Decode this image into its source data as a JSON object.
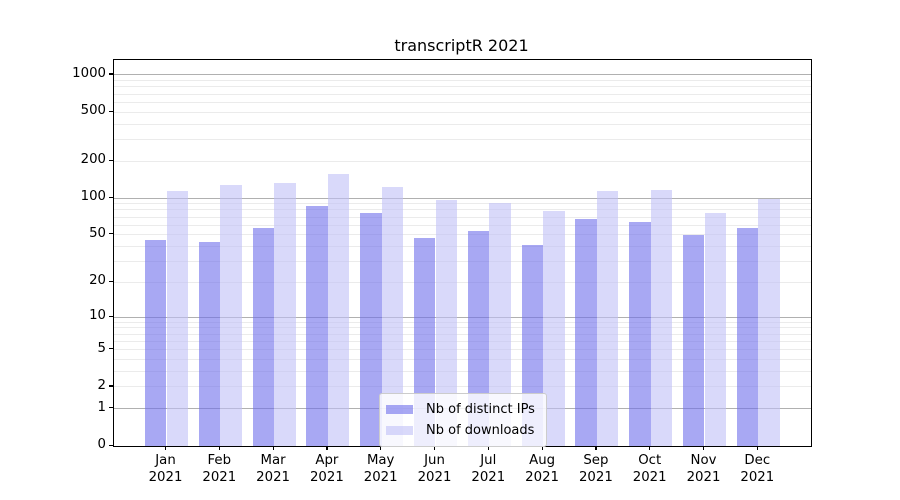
{
  "title": "transcriptR 2021",
  "legend": {
    "items": [
      {
        "label": "Nb of distinct IPs",
        "color": "rgba(110,110,235,0.6)"
      },
      {
        "label": "Nb of downloads",
        "color": "rgba(192,192,247,0.6)"
      }
    ]
  },
  "colors": {
    "major_gridline": "#b0b0b0",
    "minor_gridline": "#ebebeb",
    "axis": "#000000",
    "series_dark": "rgba(110,110,235,0.6)",
    "series_light": "rgba(192,192,247,0.6)"
  },
  "chart_data": {
    "type": "bar",
    "title": "transcriptR 2021",
    "xlabel": "",
    "ylabel": "",
    "y_scale": "log1p",
    "grid": true,
    "legend_position": "lower-center",
    "categories": [
      "Jan 2021",
      "Feb 2021",
      "Mar 2021",
      "Apr 2021",
      "May 2021",
      "Jun 2021",
      "Jul 2021",
      "Aug 2021",
      "Sep 2021",
      "Oct 2021",
      "Nov 2021",
      "Dec 2021"
    ],
    "series": [
      {
        "name": "Nb of distinct IPs",
        "color": "rgba(110,110,235,0.6)",
        "values": [
          45,
          44,
          57,
          87,
          75,
          47,
          54,
          41,
          67,
          64,
          50,
          57
        ]
      },
      {
        "name": "Nb of downloads",
        "color": "rgba(192,192,247,0.6)",
        "values": [
          114,
          127,
          132,
          156,
          123,
          96,
          92,
          79,
          114,
          116,
          76,
          98
        ]
      }
    ],
    "y_ticks": [
      0,
      1,
      2,
      5,
      10,
      20,
      50,
      100,
      200,
      500,
      1000
    ],
    "minor_tick_bases": [
      2,
      3,
      4,
      5,
      6,
      7,
      8,
      9
    ],
    "major_gridlines": [
      1,
      10,
      100,
      1000
    ],
    "ylim": [
      0,
      1320
    ]
  }
}
